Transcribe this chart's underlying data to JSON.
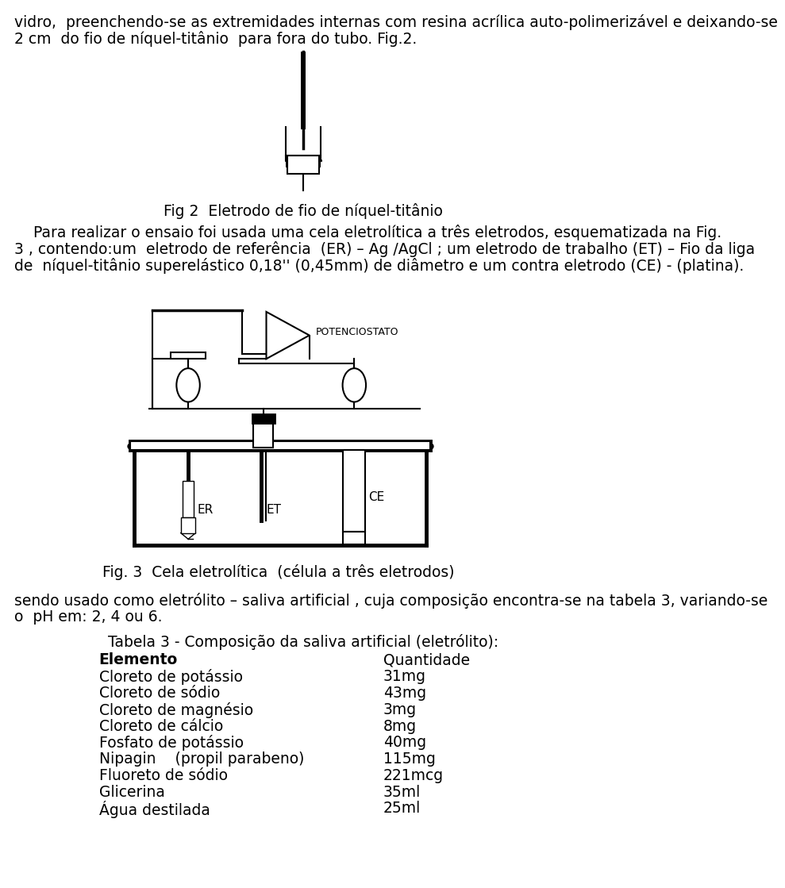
{
  "bg_color": "#ffffff",
  "text_color": "#000000",
  "line1": "vidro,  preenchendo-se as extremidades internas com resina acrílica auto-polimerizável e deixando-se",
  "line2": "2 cm  do fio de níquel-titânio  para fora do tubo. Fig.2.",
  "fig2_caption": "Fig 2  Eletrodo de fio de níquel-titânio",
  "para1": "    Para realizar o ensaio foi usada uma cela eletrolítica a três eletrodos, esquematizada na Fig.",
  "para2": "3 , contendo:um  eletrodo de referência  (ER) – Ag /AgCl ; um eletrodo de trabalho (ET) – Fio da liga",
  "para3": "de  níquel-titânio superelástico 0,18'' (0,45mm) de diâmetro e um contra eletrodo (CE) - (platina).",
  "fig3_caption": "Fig. 3  Cela eletrolítica  (célula a três eletrodos)",
  "sendo_line1": "sendo usado como eletrólito – saliva artificial , cuja composição encontra-se na tabela 3, variando-se",
  "sendo_line2": "o  pH em: 2, 4 ou 6.",
  "table_title": "Tabela 3 - Composição da saliva artificial (eletrólito):",
  "table_col1_header": "Elemento",
  "table_col2_header": "Quantidade",
  "table_rows": [
    [
      "Cloreto de potássio",
      "31mg"
    ],
    [
      "Cloreto de sódio",
      "43mg"
    ],
    [
      "Cloreto de magnésio",
      "3mg"
    ],
    [
      "Cloreto de cálcio",
      "8mg"
    ],
    [
      "Fosfato de potássio",
      "40mg"
    ],
    [
      "Nipagin    (propil parabeno)",
      "115mg"
    ],
    [
      "Fluoreto de sódio",
      "221mcg"
    ],
    [
      "Glicerina",
      "35ml"
    ],
    [
      "Água destilada",
      "25ml"
    ]
  ],
  "potenciostato_label": "POTENCIOSTATO"
}
